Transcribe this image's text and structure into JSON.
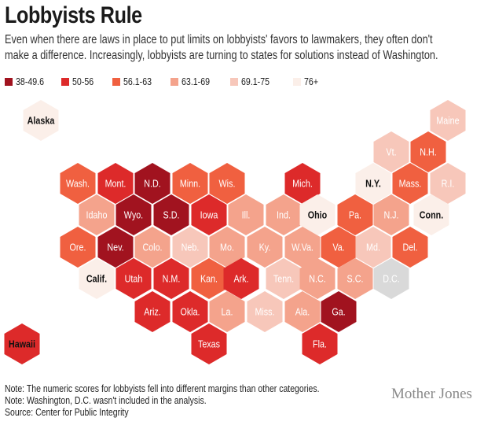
{
  "title": "Lobbyists Rule",
  "subtitle": "Even when there are laws in place to put limits on lobbyists' favors to lawmakers, they often don't make a difference. Increasingly, lobbyists are turning to states for solutions instead of Washington.",
  "legend": [
    {
      "label": "38-49.6",
      "color": "#a1131f"
    },
    {
      "label": "50-56",
      "color": "#dd2a2a"
    },
    {
      "label": "56.1-63",
      "color": "#f06040"
    },
    {
      "label": "63.1-69",
      "color": "#f4a38c"
    },
    {
      "label": "69.1-75",
      "color": "#f7c7ba"
    },
    {
      "label": "76+",
      "color": "#fbefe9"
    }
  ],
  "no_data_color": "#d9d9d9",
  "states": [
    {
      "label": "Alaska",
      "color": "#fbefe9",
      "text_color": "#111111",
      "bold": true
    },
    {
      "label": "Maine",
      "color": "#f7c7ba",
      "text_color": "#ffffff",
      "bold": false
    },
    {
      "label": "Vt.",
      "color": "#f7c7ba",
      "text_color": "#ffffff",
      "bold": false
    },
    {
      "label": "N.H.",
      "color": "#f06040",
      "text_color": "#ffffff",
      "bold": false
    },
    {
      "label": "Wash.",
      "color": "#f06040",
      "text_color": "#ffffff",
      "bold": false
    },
    {
      "label": "Mont.",
      "color": "#dd2a2a",
      "text_color": "#ffffff",
      "bold": false
    },
    {
      "label": "N.D.",
      "color": "#a1131f",
      "text_color": "#ffffff",
      "bold": false
    },
    {
      "label": "Minn.",
      "color": "#f06040",
      "text_color": "#ffffff",
      "bold": false
    },
    {
      "label": "Wis.",
      "color": "#f06040",
      "text_color": "#ffffff",
      "bold": false
    },
    {
      "label": "Mich.",
      "color": "#dd2a2a",
      "text_color": "#ffffff",
      "bold": false
    },
    {
      "label": "N.Y.",
      "color": "#fbefe9",
      "text_color": "#111111",
      "bold": true
    },
    {
      "label": "Mass.",
      "color": "#f06040",
      "text_color": "#ffffff",
      "bold": false
    },
    {
      "label": "R.I.",
      "color": "#f7c7ba",
      "text_color": "#ffffff",
      "bold": false
    },
    {
      "label": "Idaho",
      "color": "#f4a38c",
      "text_color": "#ffffff",
      "bold": false
    },
    {
      "label": "Wyo.",
      "color": "#a1131f",
      "text_color": "#ffffff",
      "bold": false
    },
    {
      "label": "S.D.",
      "color": "#a1131f",
      "text_color": "#ffffff",
      "bold": false
    },
    {
      "label": "Iowa",
      "color": "#dd2a2a",
      "text_color": "#ffffff",
      "bold": false
    },
    {
      "label": "Ill.",
      "color": "#f4a38c",
      "text_color": "#ffffff",
      "bold": false
    },
    {
      "label": "Ind.",
      "color": "#f4a38c",
      "text_color": "#ffffff",
      "bold": false
    },
    {
      "label": "Ohio",
      "color": "#fbefe9",
      "text_color": "#111111",
      "bold": true
    },
    {
      "label": "Pa.",
      "color": "#f06040",
      "text_color": "#ffffff",
      "bold": false
    },
    {
      "label": "N.J.",
      "color": "#f4a38c",
      "text_color": "#ffffff",
      "bold": false
    },
    {
      "label": "Conn.",
      "color": "#fbefe9",
      "text_color": "#111111",
      "bold": true
    },
    {
      "label": "Ore.",
      "color": "#f06040",
      "text_color": "#ffffff",
      "bold": false
    },
    {
      "label": "Nev.",
      "color": "#a1131f",
      "text_color": "#ffffff",
      "bold": false
    },
    {
      "label": "Colo.",
      "color": "#f4a38c",
      "text_color": "#ffffff",
      "bold": false
    },
    {
      "label": "Neb.",
      "color": "#f7c7ba",
      "text_color": "#ffffff",
      "bold": false
    },
    {
      "label": "Mo.",
      "color": "#f4a38c",
      "text_color": "#ffffff",
      "bold": false
    },
    {
      "label": "Ky.",
      "color": "#f4a38c",
      "text_color": "#ffffff",
      "bold": false
    },
    {
      "label": "W.Va.",
      "color": "#f4a38c",
      "text_color": "#ffffff",
      "bold": false
    },
    {
      "label": "Va.",
      "color": "#f06040",
      "text_color": "#ffffff",
      "bold": false
    },
    {
      "label": "Md.",
      "color": "#f7c7ba",
      "text_color": "#ffffff",
      "bold": false
    },
    {
      "label": "Del.",
      "color": "#f06040",
      "text_color": "#ffffff",
      "bold": false
    },
    {
      "label": "Calif.",
      "color": "#fbefe9",
      "text_color": "#111111",
      "bold": true
    },
    {
      "label": "Utah",
      "color": "#dd2a2a",
      "text_color": "#ffffff",
      "bold": false
    },
    {
      "label": "N.M.",
      "color": "#dd2a2a",
      "text_color": "#ffffff",
      "bold": false
    },
    {
      "label": "Kan.",
      "color": "#f06040",
      "text_color": "#ffffff",
      "bold": false
    },
    {
      "label": "Ark.",
      "color": "#dd2a2a",
      "text_color": "#ffffff",
      "bold": false
    },
    {
      "label": "Tenn.",
      "color": "#f7c7ba",
      "text_color": "#ffffff",
      "bold": false
    },
    {
      "label": "N.C.",
      "color": "#f4a38c",
      "text_color": "#ffffff",
      "bold": false
    },
    {
      "label": "S.C.",
      "color": "#f4a38c",
      "text_color": "#ffffff",
      "bold": false
    },
    {
      "label": "D.C.",
      "color": "#d9d9d9",
      "text_color": "#ffffff",
      "bold": false
    },
    {
      "label": "Ariz.",
      "color": "#dd2a2a",
      "text_color": "#ffffff",
      "bold": false
    },
    {
      "label": "Okla.",
      "color": "#dd2a2a",
      "text_color": "#ffffff",
      "bold": false
    },
    {
      "label": "La.",
      "color": "#f4a38c",
      "text_color": "#ffffff",
      "bold": false
    },
    {
      "label": "Miss.",
      "color": "#f7c7ba",
      "text_color": "#ffffff",
      "bold": false
    },
    {
      "label": "Ala.",
      "color": "#f4a38c",
      "text_color": "#ffffff",
      "bold": false
    },
    {
      "label": "Ga.",
      "color": "#a1131f",
      "text_color": "#ffffff",
      "bold": false
    },
    {
      "label": "Texas",
      "color": "#dd2a2a",
      "text_color": "#ffffff",
      "bold": false
    },
    {
      "label": "Fla.",
      "color": "#dd2a2a",
      "text_color": "#ffffff",
      "bold": false
    },
    {
      "label": "Hawaii",
      "color": "#dd2a2a",
      "text_color": "#111111",
      "bold": true
    }
  ],
  "notes": [
    "Note: The numeric scores for lobbyists fell into different margins than other categories.",
    "Note: Washington, D.C. wasn't included in the analysis.",
    "Source: Center for Public Integrity"
  ],
  "logo": "Mother Jones"
}
